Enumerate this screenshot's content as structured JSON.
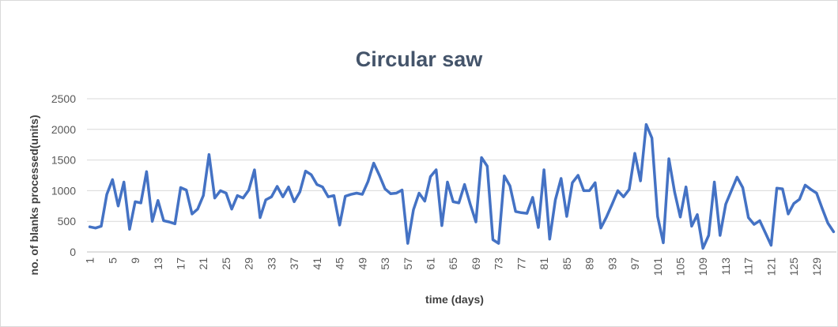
{
  "chart_data": {
    "type": "line",
    "title": "Circular saw",
    "xlabel": "time (days)",
    "ylabel": "no. of blanks processed(units)",
    "ylim": [
      0,
      2500
    ],
    "yticks": [
      "0",
      "500",
      "1000",
      "1500",
      "2000",
      "2500"
    ],
    "grid": "horizontal",
    "legend": "none",
    "line_color": "#4472c4",
    "x_tick_labels": [
      "1",
      "5",
      "9",
      "13",
      "17",
      "21",
      "25",
      "29",
      "33",
      "37",
      "41",
      "45",
      "49",
      "53",
      "57",
      "61",
      "65",
      "69",
      "73",
      "77",
      "81",
      "85",
      "89",
      "93",
      "97",
      "101",
      "105",
      "109",
      "113",
      "117",
      "121",
      "125",
      "129"
    ],
    "x": [
      1,
      2,
      3,
      4,
      5,
      6,
      7,
      8,
      9,
      10,
      11,
      12,
      13,
      14,
      15,
      16,
      17,
      18,
      19,
      20,
      21,
      22,
      23,
      24,
      25,
      26,
      27,
      28,
      29,
      30,
      31,
      32,
      33,
      34,
      35,
      36,
      37,
      38,
      39,
      40,
      41,
      42,
      43,
      44,
      45,
      46,
      47,
      48,
      49,
      50,
      51,
      52,
      53,
      54,
      55,
      56,
      57,
      58,
      59,
      60,
      61,
      62,
      63,
      64,
      65,
      66,
      67,
      68,
      69,
      70,
      71,
      72,
      73,
      74,
      75,
      76,
      77,
      78,
      79,
      80,
      81,
      82,
      83,
      84,
      85,
      86,
      87,
      88,
      89,
      90,
      91,
      92,
      93,
      94,
      95,
      96,
      97,
      98,
      99,
      100,
      101,
      102,
      103,
      104,
      105,
      106,
      107,
      108,
      109,
      110,
      111,
      112,
      113,
      114,
      115,
      116,
      117,
      118,
      119,
      120,
      121,
      122,
      123,
      124,
      125,
      126,
      127,
      128,
      129,
      130,
      131,
      132
    ],
    "values": [
      410,
      390,
      420,
      940,
      1180,
      750,
      1140,
      370,
      820,
      800,
      1310,
      500,
      840,
      510,
      490,
      460,
      1050,
      1010,
      620,
      700,
      920,
      1590,
      880,
      1000,
      960,
      700,
      920,
      880,
      1010,
      1340,
      560,
      850,
      900,
      1070,
      900,
      1060,
      820,
      980,
      1320,
      1260,
      1100,
      1060,
      900,
      920,
      440,
      910,
      940,
      960,
      940,
      1150,
      1450,
      1250,
      1030,
      950,
      960,
      1010,
      140,
      690,
      960,
      830,
      1230,
      1340,
      430,
      1140,
      820,
      800,
      1100,
      780,
      490,
      1540,
      1400,
      200,
      140,
      1240,
      1080,
      660,
      640,
      630,
      890,
      400,
      1340,
      210,
      850,
      1200,
      580,
      1130,
      1250,
      1000,
      1000,
      1130,
      390,
      570,
      780,
      1000,
      900,
      1020,
      1610,
      1160,
      2080,
      1860,
      580,
      150,
      1520,
      980,
      570,
      1060,
      420,
      610,
      60,
      270,
      1140,
      270,
      780,
      1000,
      1220,
      1050,
      560,
      450,
      510,
      310,
      110,
      1040,
      1030,
      620,
      790,
      860,
      1090,
      1020,
      960,
      710,
      470,
      330
    ]
  }
}
